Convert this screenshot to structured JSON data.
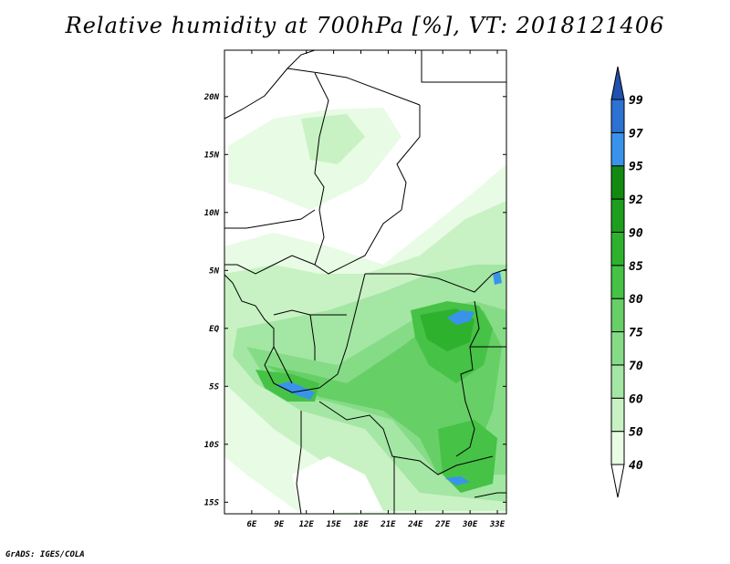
{
  "title": "Relative humidity at 700hPa [%], VT: 2018121406",
  "footer": "GrADS: IGES/COLA",
  "map": {
    "lon_range": [
      3,
      34
    ],
    "lat_range": [
      -16,
      24
    ],
    "lon_ticks": [
      "6E",
      "9E",
      "12E",
      "15E",
      "18E",
      "21E",
      "24E",
      "27E",
      "30E",
      "33E"
    ],
    "lat_ticks": [
      "20N",
      "15N",
      "10N",
      "5N",
      "EQ",
      "5S",
      "10S",
      "15S"
    ]
  },
  "colorbar": {
    "labels": [
      "40",
      "50",
      "60",
      "70",
      "75",
      "80",
      "85",
      "90",
      "92",
      "95",
      "97",
      "99"
    ],
    "colors": {
      "below_40": "#ffffff",
      "40_50": "#e8fbe4",
      "50_60": "#c8f2c4",
      "60_70": "#a4e6a4",
      "70_75": "#86dc86",
      "75_80": "#66cf66",
      "80_85": "#46c246",
      "85_90": "#2eb22e",
      "90_92": "#1e9e1e",
      "92_95": "#128a12",
      "95_97": "#3a93ea",
      "97_99": "#2d72d2",
      "above_99": "#2050b0"
    }
  }
}
